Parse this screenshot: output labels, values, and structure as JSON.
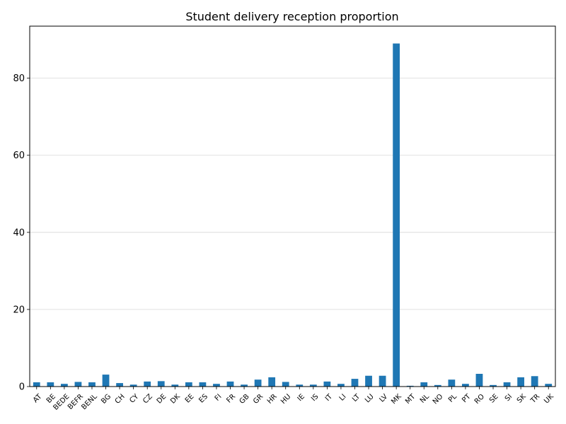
{
  "chart_data": {
    "type": "bar",
    "title": "Student delivery reception proportion",
    "xlabel": "",
    "ylabel": "",
    "ylim": [
      0,
      93.5
    ],
    "yticks": [
      0,
      20,
      40,
      60,
      80
    ],
    "grid": "horizontal",
    "categories": [
      "AT",
      "BE",
      "BEDE",
      "BEFR",
      "BENL",
      "BG",
      "CH",
      "CY",
      "CZ",
      "DE",
      "DK",
      "EE",
      "ES",
      "FI",
      "FR",
      "GB",
      "GR",
      "HR",
      "HU",
      "IE",
      "IS",
      "IT",
      "LI",
      "LT",
      "LU",
      "LV",
      "MK",
      "MT",
      "NL",
      "NO",
      "PL",
      "PT",
      "RO",
      "SE",
      "SI",
      "SK",
      "TR",
      "UK"
    ],
    "values": [
      1.1,
      1.1,
      0.7,
      1.2,
      1.1,
      3.1,
      0.9,
      0.5,
      1.3,
      1.4,
      0.5,
      1.1,
      1.1,
      0.7,
      1.3,
      0.5,
      1.8,
      2.4,
      1.2,
      0.5,
      0.5,
      1.3,
      0.7,
      2.0,
      2.8,
      2.8,
      89.0,
      0.2,
      1.1,
      0.4,
      1.8,
      0.7,
      3.3,
      0.4,
      1.1,
      2.4,
      2.7,
      0.7
    ],
    "bar_color": "#1f77b4"
  }
}
